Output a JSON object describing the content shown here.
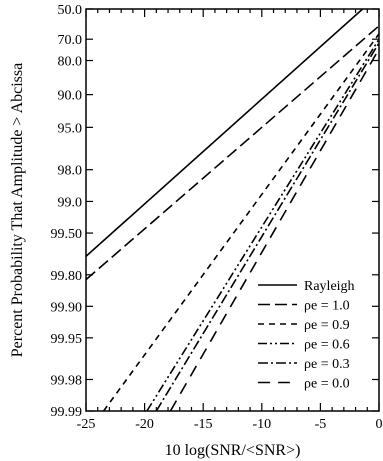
{
  "chart_data": {
    "type": "line",
    "xlabel": "10 log(SNR/<SNR>)",
    "ylabel": "Percent Probability That Amplitude > Abcissa",
    "xlim": [
      -25,
      0
    ],
    "x_ticks": [
      -25,
      -20,
      -15,
      -10,
      -5,
      0
    ],
    "x_tick_labels": [
      "-25",
      "-20",
      "-15",
      "-10",
      "-5",
      "0"
    ],
    "y_scale": "probability (Weibull/Rayleigh paper)",
    "y_ticks": [
      50.0,
      70.0,
      80.0,
      90.0,
      95.0,
      98.0,
      99.0,
      99.5,
      99.8,
      99.9,
      99.95,
      99.98,
      99.99
    ],
    "y_tick_labels": [
      "50.0",
      "70.0",
      "80.0",
      "90.0",
      "95.0",
      "98.0",
      "99.0",
      "99.50",
      "99.80",
      "99.90",
      "99.95",
      "99.98",
      "99.99"
    ],
    "grid": false,
    "legend_position": "bottom-right",
    "series": [
      {
        "name": "Rayleigh",
        "dash": "solid",
        "points": [
          [
            -25,
            99.7
          ],
          [
            -1.4,
            50.0
          ]
        ]
      },
      {
        "name": "ρe = 1.0",
        "dash": "long-dash",
        "points": [
          [
            -25,
            99.82
          ],
          [
            0,
            62.0
          ]
        ]
      },
      {
        "name": "ρe = 0.9",
        "dash": "short-dash",
        "points": [
          [
            -23.5,
            99.99
          ],
          [
            0,
            67.0
          ]
        ]
      },
      {
        "name": "ρe = 0.6",
        "dash": "dash-dot-dot",
        "points": [
          [
            -19.8,
            99.99
          ],
          [
            0,
            70.0
          ]
        ]
      },
      {
        "name": "ρe = 0.3",
        "dash": "dash-dot",
        "points": [
          [
            -19.0,
            99.99
          ],
          [
            0,
            72.0
          ]
        ]
      },
      {
        "name": "ρe = 0.0",
        "dash": "long-gap-dash",
        "points": [
          [
            -17.8,
            99.99
          ],
          [
            0,
            75.0
          ]
        ]
      }
    ]
  }
}
